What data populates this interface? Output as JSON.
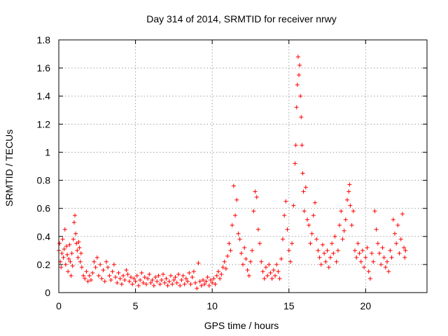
{
  "chart_data": {
    "type": "scatter",
    "title": "Day 314 of 2014, SRMTID for receiver nrwy",
    "xlabel": "GPS time / hours",
    "ylabel": "SRMTID / TECUs",
    "xlim": [
      0,
      24
    ],
    "ylim": [
      0,
      1.8
    ],
    "xticks": [
      0,
      5,
      10,
      15,
      20
    ],
    "yticks": [
      0,
      0.2,
      0.4,
      0.6,
      0.8,
      1,
      1.2,
      1.4,
      1.6,
      1.8
    ],
    "ytick_labels": [
      "0",
      "0.2",
      "0.4",
      "0.6",
      "0.8",
      "1",
      "1.2",
      "1.4",
      "1.6",
      "1.8"
    ],
    "grid": true,
    "marker": "+",
    "color": "#ff0000",
    "series": [
      {
        "name": "SRMTID",
        "points": [
          [
            0.0,
            0.3
          ],
          [
            0.05,
            0.35
          ],
          [
            0.1,
            0.22
          ],
          [
            0.15,
            0.18
          ],
          [
            0.2,
            0.28
          ],
          [
            0.25,
            0.38
          ],
          [
            0.3,
            0.25
          ],
          [
            0.35,
            0.31
          ],
          [
            0.4,
            0.45
          ],
          [
            0.45,
            0.2
          ],
          [
            0.5,
            0.33
          ],
          [
            0.55,
            0.27
          ],
          [
            0.6,
            0.15
          ],
          [
            0.65,
            0.24
          ],
          [
            0.7,
            0.34
          ],
          [
            0.75,
            0.22
          ],
          [
            0.8,
            0.12
          ],
          [
            0.85,
            0.28
          ],
          [
            0.9,
            0.19
          ],
          [
            0.95,
            0.38
          ],
          [
            1.0,
            0.5
          ],
          [
            1.05,
            0.55
          ],
          [
            1.1,
            0.42
          ],
          [
            1.15,
            0.35
          ],
          [
            1.2,
            0.3
          ],
          [
            1.25,
            0.25
          ],
          [
            1.3,
            0.36
          ],
          [
            1.35,
            0.32
          ],
          [
            1.4,
            0.22
          ],
          [
            1.45,
            0.28
          ],
          [
            1.5,
            0.18
          ],
          [
            1.6,
            0.12
          ],
          [
            1.7,
            0.1
          ],
          [
            1.8,
            0.15
          ],
          [
            1.9,
            0.08
          ],
          [
            2.0,
            0.12
          ],
          [
            2.1,
            0.09
          ],
          [
            2.2,
            0.14
          ],
          [
            2.3,
            0.22
          ],
          [
            2.4,
            0.18
          ],
          [
            2.5,
            0.25
          ],
          [
            2.6,
            0.12
          ],
          [
            2.7,
            0.2
          ],
          [
            2.8,
            0.1
          ],
          [
            2.9,
            0.16
          ],
          [
            3.0,
            0.08
          ],
          [
            3.1,
            0.22
          ],
          [
            3.2,
            0.18
          ],
          [
            3.3,
            0.12
          ],
          [
            3.4,
            0.09
          ],
          [
            3.5,
            0.15
          ],
          [
            3.6,
            0.2
          ],
          [
            3.7,
            0.11
          ],
          [
            3.8,
            0.07
          ],
          [
            3.9,
            0.14
          ],
          [
            4.0,
            0.1
          ],
          [
            4.1,
            0.06
          ],
          [
            4.2,
            0.12
          ],
          [
            4.3,
            0.09
          ],
          [
            4.4,
            0.16
          ],
          [
            4.5,
            0.13
          ],
          [
            4.6,
            0.08
          ],
          [
            4.7,
            0.11
          ],
          [
            4.8,
            0.06
          ],
          [
            4.9,
            0.1
          ],
          [
            5.0,
            0.08
          ],
          [
            5.1,
            0.12
          ],
          [
            5.2,
            0.05
          ],
          [
            5.3,
            0.09
          ],
          [
            5.4,
            0.14
          ],
          [
            5.5,
            0.07
          ],
          [
            5.6,
            0.11
          ],
          [
            5.7,
            0.06
          ],
          [
            5.8,
            0.1
          ],
          [
            5.9,
            0.13
          ],
          [
            6.0,
            0.07
          ],
          [
            6.1,
            0.09
          ],
          [
            6.2,
            0.05
          ],
          [
            6.3,
            0.11
          ],
          [
            6.4,
            0.08
          ],
          [
            6.5,
            0.12
          ],
          [
            6.6,
            0.06
          ],
          [
            6.7,
            0.09
          ],
          [
            6.8,
            0.13
          ],
          [
            6.9,
            0.07
          ],
          [
            7.0,
            0.1
          ],
          [
            7.1,
            0.05
          ],
          [
            7.2,
            0.08
          ],
          [
            7.3,
            0.12
          ],
          [
            7.4,
            0.06
          ],
          [
            7.5,
            0.09
          ],
          [
            7.6,
            0.11
          ],
          [
            7.7,
            0.07
          ],
          [
            7.8,
            0.13
          ],
          [
            7.9,
            0.05
          ],
          [
            8.0,
            0.09
          ],
          [
            8.1,
            0.12
          ],
          [
            8.2,
            0.06
          ],
          [
            8.3,
            0.1
          ],
          [
            8.4,
            0.08
          ],
          [
            8.5,
            0.14
          ],
          [
            8.6,
            0.06
          ],
          [
            8.7,
            0.11
          ],
          [
            8.8,
            0.15
          ],
          [
            8.9,
            0.07
          ],
          [
            9.0,
            0.03
          ],
          [
            9.1,
            0.21
          ],
          [
            9.2,
            0.08
          ],
          [
            9.3,
            0.05
          ],
          [
            9.4,
            0.09
          ],
          [
            9.5,
            0.06
          ],
          [
            9.6,
            0.08
          ],
          [
            9.7,
            0.11
          ],
          [
            9.8,
            0.05
          ],
          [
            9.9,
            0.09
          ],
          [
            10.0,
            0.07
          ],
          [
            10.1,
            0.1
          ],
          [
            10.2,
            0.06
          ],
          [
            10.3,
            0.12
          ],
          [
            10.4,
            0.15
          ],
          [
            10.5,
            0.1
          ],
          [
            10.6,
            0.13
          ],
          [
            10.7,
            0.18
          ],
          [
            10.8,
            0.22
          ],
          [
            10.9,
            0.17
          ],
          [
            11.0,
            0.26
          ],
          [
            11.1,
            0.35
          ],
          [
            11.2,
            0.3
          ],
          [
            11.3,
            0.48
          ],
          [
            11.4,
            0.76
          ],
          [
            11.5,
            0.55
          ],
          [
            11.6,
            0.66
          ],
          [
            11.7,
            0.42
          ],
          [
            11.8,
            0.38
          ],
          [
            11.9,
            0.28
          ],
          [
            12.0,
            0.2
          ],
          [
            12.1,
            0.32
          ],
          [
            12.2,
            0.24
          ],
          [
            12.3,
            0.16
          ],
          [
            12.4,
            0.12
          ],
          [
            12.5,
            0.22
          ],
          [
            12.6,
            0.3
          ],
          [
            12.7,
            0.58
          ],
          [
            12.8,
            0.72
          ],
          [
            12.9,
            0.68
          ],
          [
            13.0,
            0.45
          ],
          [
            13.1,
            0.35
          ],
          [
            13.2,
            0.22
          ],
          [
            13.3,
            0.15
          ],
          [
            13.4,
            0.1
          ],
          [
            13.5,
            0.18
          ],
          [
            13.6,
            0.12
          ],
          [
            13.7,
            0.2
          ],
          [
            13.8,
            0.14
          ],
          [
            13.9,
            0.1
          ],
          [
            14.0,
            0.16
          ],
          [
            14.1,
            0.12
          ],
          [
            14.2,
            0.2
          ],
          [
            14.3,
            0.15
          ],
          [
            14.4,
            0.1
          ],
          [
            14.5,
            0.24
          ],
          [
            14.6,
            0.38
          ],
          [
            14.7,
            0.55
          ],
          [
            14.8,
            0.65
          ],
          [
            14.9,
            0.45
          ],
          [
            15.0,
            0.3
          ],
          [
            15.1,
            0.22
          ],
          [
            15.2,
            0.35
          ],
          [
            15.3,
            0.62
          ],
          [
            15.4,
            0.92
          ],
          [
            15.45,
            1.05
          ],
          [
            15.5,
            1.32
          ],
          [
            15.55,
            1.48
          ],
          [
            15.6,
            1.68
          ],
          [
            15.65,
            1.55
          ],
          [
            15.7,
            1.62
          ],
          [
            15.75,
            1.4
          ],
          [
            15.8,
            1.25
          ],
          [
            15.85,
            1.05
          ],
          [
            15.9,
            0.85
          ],
          [
            15.95,
            0.72
          ],
          [
            16.0,
            0.58
          ],
          [
            16.1,
            0.75
          ],
          [
            16.2,
            0.52
          ],
          [
            16.3,
            0.48
          ],
          [
            16.4,
            0.35
          ],
          [
            16.5,
            0.42
          ],
          [
            16.6,
            0.55
          ],
          [
            16.7,
            0.64
          ],
          [
            16.8,
            0.38
          ],
          [
            16.9,
            0.3
          ],
          [
            17.0,
            0.25
          ],
          [
            17.1,
            0.2
          ],
          [
            17.2,
            0.34
          ],
          [
            17.3,
            0.28
          ],
          [
            17.4,
            0.22
          ],
          [
            17.5,
            0.3
          ],
          [
            17.6,
            0.18
          ],
          [
            17.7,
            0.25
          ],
          [
            17.8,
            0.35
          ],
          [
            17.9,
            0.28
          ],
          [
            18.0,
            0.4
          ],
          [
            18.1,
            0.22
          ],
          [
            18.2,
            0.3
          ],
          [
            18.3,
            0.48
          ],
          [
            18.4,
            0.58
          ],
          [
            18.5,
            0.38
          ],
          [
            18.6,
            0.44
          ],
          [
            18.7,
            0.52
          ],
          [
            18.8,
            0.66
          ],
          [
            18.9,
            0.72
          ],
          [
            18.95,
            0.77
          ],
          [
            19.0,
            0.62
          ],
          [
            19.1,
            0.48
          ],
          [
            19.2,
            0.58
          ],
          [
            19.3,
            0.3
          ],
          [
            19.4,
            0.25
          ],
          [
            19.5,
            0.35
          ],
          [
            19.6,
            0.28
          ],
          [
            19.7,
            0.22
          ],
          [
            19.8,
            0.3
          ],
          [
            19.9,
            0.18
          ],
          [
            20.0,
            0.25
          ],
          [
            20.1,
            0.32
          ],
          [
            20.2,
            0.15
          ],
          [
            20.3,
            0.1
          ],
          [
            20.4,
            0.28
          ],
          [
            20.5,
            0.22
          ],
          [
            20.6,
            0.58
          ],
          [
            20.7,
            0.45
          ],
          [
            20.8,
            0.35
          ],
          [
            20.9,
            0.28
          ],
          [
            21.0,
            0.2
          ],
          [
            21.1,
            0.32
          ],
          [
            21.2,
            0.25
          ],
          [
            21.3,
            0.18
          ],
          [
            21.4,
            0.22
          ],
          [
            21.5,
            0.15
          ],
          [
            21.6,
            0.3
          ],
          [
            21.7,
            0.25
          ],
          [
            21.8,
            0.52
          ],
          [
            21.9,
            0.42
          ],
          [
            22.0,
            0.35
          ],
          [
            22.1,
            0.48
          ],
          [
            22.2,
            0.28
          ],
          [
            22.3,
            0.38
          ],
          [
            22.4,
            0.56
          ],
          [
            22.5,
            0.32
          ],
          [
            22.55,
            0.25
          ],
          [
            22.6,
            0.3
          ]
        ]
      }
    ]
  }
}
